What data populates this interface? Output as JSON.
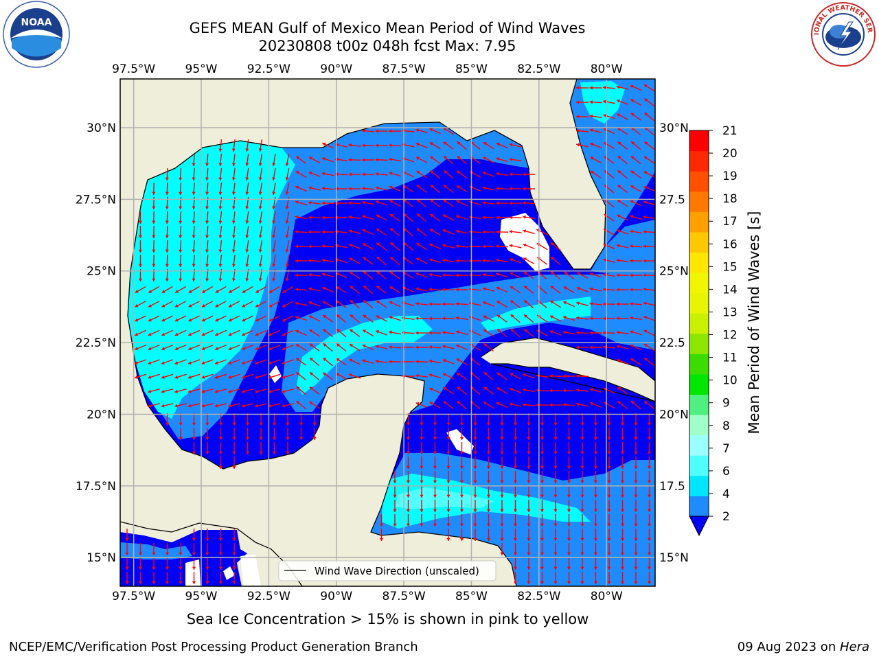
{
  "title": {
    "line1": "GEFS MEAN Gulf of Mexico Mean Period of Wind Waves",
    "line2": "20230808 t00z 048h fcst   Max: 7.95"
  },
  "map": {
    "lon_ticks": [
      "97.5°W",
      "95°W",
      "92.5°W",
      "90°W",
      "87.5°W",
      "85°W",
      "82.5°W",
      "80°W"
    ],
    "lat_ticks_left": [
      "30°N",
      "27.5°N",
      "25°N",
      "22.5°N",
      "20°N",
      "17.5°N",
      "15°N"
    ],
    "lat_ticks_right": [
      "30°N",
      "27.5",
      "25°N",
      "22.5",
      "20°N",
      "17.5",
      "15°N"
    ],
    "lon_range": [
      -98,
      -78.2
    ],
    "lat_range": [
      14,
      31.7
    ],
    "legend_label": "Wind Wave Direction (unscaled)",
    "colors": {
      "land": "#efeedb",
      "ocean_low": "#0000f5",
      "ocean_mid": "#1e8cff",
      "ocean_high": "#00ffff",
      "ocean_high2": "#50ffff",
      "arrows": "#ff0000",
      "grid": "#b0b0b0"
    }
  },
  "colorbar": {
    "label": "Mean Period of Wind Waves [s]",
    "ticks": [
      "2",
      "4",
      "6",
      "7",
      "8",
      "9",
      "10",
      "11",
      "12",
      "13",
      "14",
      "15",
      "16",
      "17",
      "18",
      "19",
      "20",
      "21"
    ],
    "colors": [
      "#1e8cff",
      "#00e6ff",
      "#50ffff",
      "#9bffff",
      "#a0ffc8",
      "#50f080",
      "#00e600",
      "#3cdc00",
      "#8ce600",
      "#c8f000",
      "#e6f500",
      "#f0f500",
      "#ffe600",
      "#ffc800",
      "#ffa000",
      "#ff7800",
      "#ff5000",
      "#ff2800",
      "#ff0000"
    ],
    "extend_color": "#0000f5"
  },
  "ice_note": "Sea Ice Concentration > 15% is shown in pink to yellow",
  "footer": {
    "left": "NCEP/EMC/Verification Post Processing Product Generation Branch",
    "right_date": "09 Aug 2023 on ",
    "right_host": "Hera"
  },
  "logos": {
    "noaa": "NOAA",
    "nws": "NATIONAL WEATHER SERVICE"
  }
}
